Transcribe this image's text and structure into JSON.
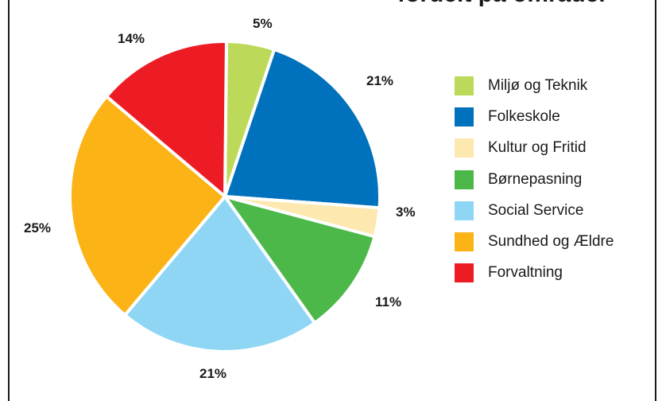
{
  "title": "fordelt på områder",
  "chart_data": {
    "type": "pie",
    "title": "fordelt på områder",
    "slices": [
      {
        "label": "Miljø og Teknik",
        "value": 5,
        "display": "5%",
        "color": "#bcd95a"
      },
      {
        "label": "Folkeskole",
        "value": 21,
        "display": "21%",
        "color": "#0071bc"
      },
      {
        "label": "Kultur og Fritid",
        "value": 3,
        "display": "3%",
        "color": "#fde9b0"
      },
      {
        "label": "Børnepasning",
        "value": 11,
        "display": "11%",
        "color": "#4cb849"
      },
      {
        "label": "Social Service",
        "value": 21,
        "display": "21%",
        "color": "#8fd6f5"
      },
      {
        "label": "Sundhed og Ældre",
        "value": 25,
        "display": "25%",
        "color": "#fbb316"
      },
      {
        "label": "Forvaltning",
        "value": 14,
        "display": "14%",
        "color": "#ed1c24"
      }
    ],
    "legend_position": "right"
  }
}
